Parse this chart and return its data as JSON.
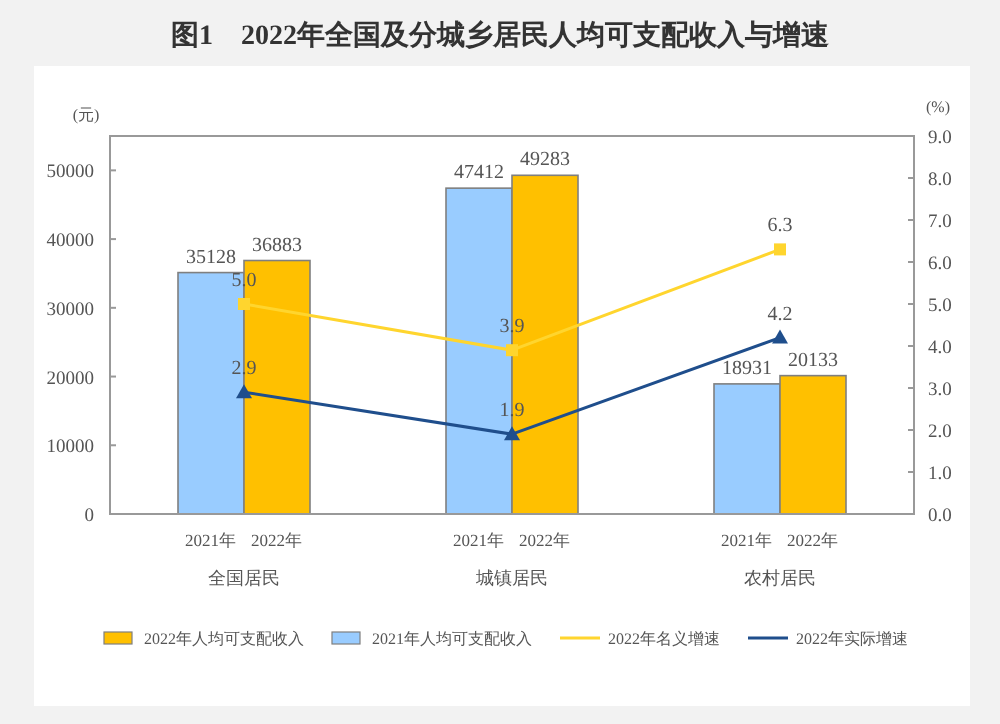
{
  "chart_data": {
    "type": "bar",
    "title": "图1　2022年全国及分城乡居民人均可支配收入与增速",
    "ylabel": "(元)",
    "y2label": "(%)",
    "categories": [
      "全国居民",
      "城镇居民",
      "农村居民"
    ],
    "series": [
      {
        "name": "2021年人均可支配收入",
        "color": "#99ccff",
        "values": [
          35128,
          47412,
          18931
        ]
      },
      {
        "name": "2022年人均可支配收入",
        "color": "#ffc000",
        "values": [
          36883,
          49283,
          20133
        ]
      },
      {
        "name": "2022年名义增速",
        "type": "line",
        "axis": "y2",
        "color": "#ffd52e",
        "marker": "square",
        "values": [
          5.0,
          3.9,
          6.3
        ],
        "value_labels": [
          "5.0",
          "3.9",
          "6.3"
        ]
      },
      {
        "name": "2022年实际增速",
        "type": "line",
        "axis": "y2",
        "color": "#1f4e8c",
        "marker": "triangle",
        "values": [
          2.9,
          1.9,
          4.2
        ],
        "value_labels": [
          "2.9",
          "1.9",
          "4.2"
        ]
      }
    ],
    "annotations": [
      "2021年",
      "2022年",
      "2021年",
      "2022年",
      "2021年",
      "2022年"
    ],
    "ylim": [
      0,
      55000
    ],
    "yticks": [
      0,
      10000,
      20000,
      30000,
      40000,
      50000
    ],
    "y2lim": [
      0,
      9
    ],
    "y2ticks": [
      {
        "value": 0,
        "label": "0.0"
      },
      {
        "value": 1,
        "label": "1.0"
      },
      {
        "value": 2,
        "label": "2.0"
      },
      {
        "value": 3,
        "label": "3.0"
      },
      {
        "value": 4,
        "label": "4.0"
      },
      {
        "value": 5,
        "label": "5.0"
      },
      {
        "value": 6,
        "label": "6.0"
      },
      {
        "value": 7,
        "label": "7.0"
      },
      {
        "value": 8,
        "label": "8.0"
      },
      {
        "value": 9,
        "label": "9.0"
      }
    ],
    "data_labels": true,
    "grid": false,
    "legend": "bottom"
  }
}
